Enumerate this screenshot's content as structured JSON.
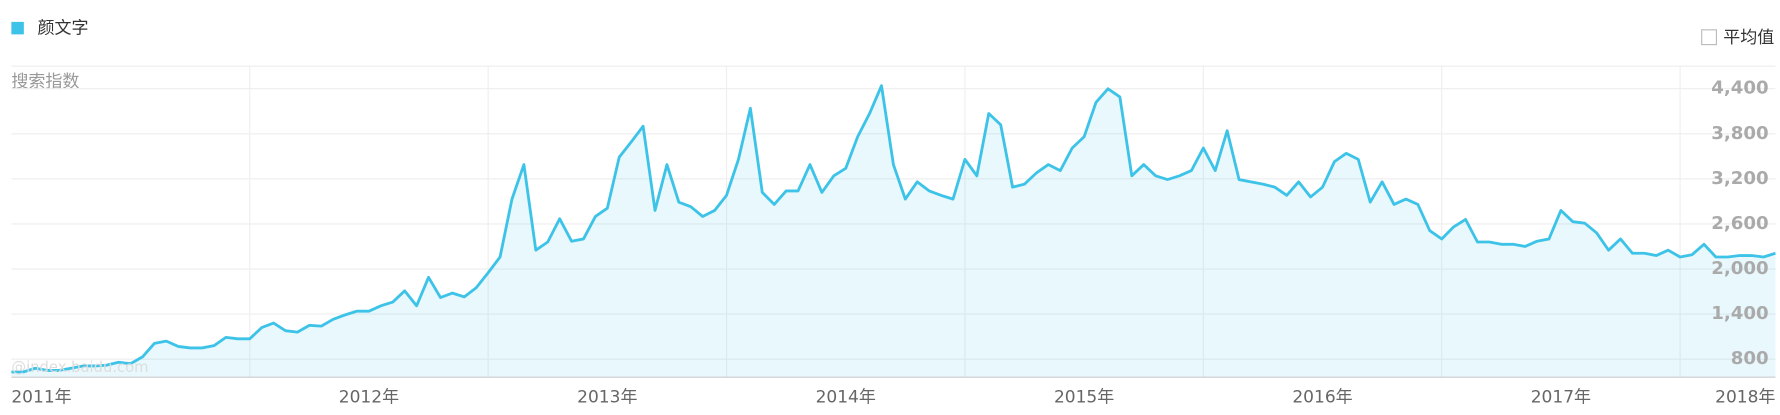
{
  "chart_data": {
    "type": "line",
    "area": true,
    "y_axis_label": "搜索指数",
    "average_toggle": "平均值",
    "watermark": "@index.baidu.com",
    "categories": [
      "2011年",
      null,
      null,
      null,
      null,
      null,
      null,
      null,
      null,
      null,
      null,
      null,
      null,
      null,
      null,
      null,
      null,
      null,
      null,
      null,
      null,
      null,
      null,
      null,
      null,
      null,
      null,
      null,
      null,
      null,
      "2012年",
      null,
      null,
      null,
      null,
      null,
      null,
      null,
      null,
      null,
      null,
      null,
      null,
      null,
      null,
      null,
      null,
      null,
      null,
      null,
      "2013年",
      null,
      null,
      null,
      null,
      null,
      null,
      null,
      null,
      null,
      null,
      null,
      null,
      null,
      null,
      null,
      null,
      null,
      null,
      null,
      "2014年",
      null,
      null,
      null,
      null,
      null,
      null,
      null,
      null,
      null,
      null,
      null,
      null,
      null,
      null,
      null,
      null,
      null,
      null,
      null,
      "2015年",
      null,
      null,
      null,
      null,
      null,
      null,
      null,
      null,
      null,
      null,
      null,
      null,
      null,
      null,
      null,
      null,
      null,
      null,
      null,
      "2016年",
      null,
      null,
      null,
      null,
      null,
      null,
      null,
      null,
      null,
      null,
      null,
      null,
      null,
      null,
      null,
      null,
      null,
      null,
      null,
      "2017年",
      null,
      null,
      null,
      null,
      null,
      null,
      null,
      null,
      null,
      null,
      null,
      null,
      null,
      null,
      null,
      null,
      null,
      "2018年"
    ],
    "series": [
      {
        "name": "颜文字",
        "color": "#3ec3e8",
        "values": [
          630,
          630,
          680,
          650,
          650,
          680,
          710,
          710,
          720,
          760,
          740,
          830,
          1010,
          1040,
          970,
          950,
          950,
          980,
          1090,
          1070,
          1070,
          1220,
          1280,
          1180,
          1160,
          1250,
          1240,
          1330,
          1390,
          1440,
          1440,
          1510,
          1560,
          1710,
          1510,
          1890,
          1620,
          1680,
          1630,
          1750,
          1950,
          2160,
          2930,
          3390,
          2250,
          2360,
          2670,
          2370,
          2400,
          2700,
          2810,
          3490,
          3690,
          3900,
          2780,
          3390,
          2890,
          2830,
          2700,
          2780,
          2980,
          3460,
          4140,
          3020,
          2860,
          3040,
          3040,
          3390,
          3020,
          3240,
          3340,
          3760,
          4070,
          4440,
          3390,
          2930,
          3160,
          3040,
          2980,
          2930,
          3460,
          3240,
          4070,
          3920,
          3090,
          3130,
          3280,
          3390,
          3310,
          3610,
          3760,
          4220,
          4400,
          4290,
          3240,
          3390,
          3240,
          3190,
          3240,
          3310,
          3610,
          3310,
          3840,
          3190,
          3160,
          3130,
          3090,
          2980,
          3160,
          2960,
          3090,
          3430,
          3540,
          3460,
          2890,
          3160,
          2860,
          2930,
          2860,
          2510,
          2400,
          2560,
          2660,
          2360,
          2360,
          2330,
          2330,
          2300,
          2370,
          2400,
          2780,
          2630,
          2610,
          2480,
          2250,
          2400,
          2210,
          2210,
          2180,
          2250,
          2160,
          2190,
          2330,
          2160,
          2160,
          2180,
          2180,
          2160,
          2210
        ]
      }
    ],
    "ylim": [
      560,
      4700
    ],
    "yticks": [
      800,
      {
        "value": 1400,
        "label": "1,400"
      },
      {
        "value": 2000,
        "label": "2,000"
      },
      {
        "value": 2600,
        "label": "2,600"
      },
      {
        "value": 3200,
        "label": "3,200"
      },
      {
        "value": 3800,
        "label": "3,800"
      },
      {
        "value": 4400,
        "label": "4,400"
      }
    ],
    "grid": true
  }
}
